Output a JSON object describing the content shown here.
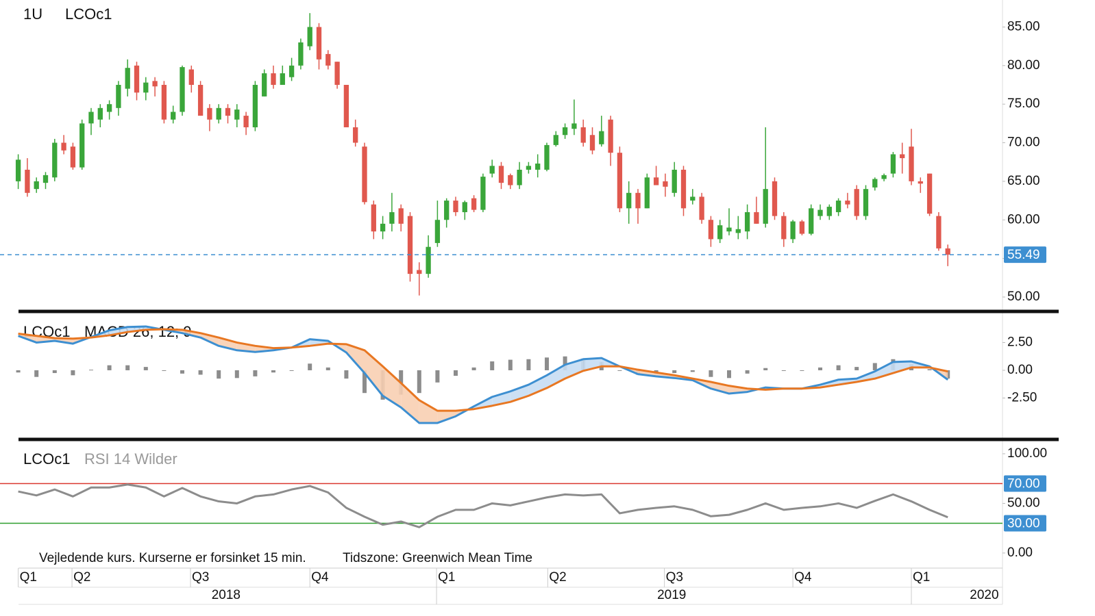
{
  "chart_data": [
    {
      "type": "candlestick",
      "title": [
        "1U",
        "LCOc1"
      ],
      "up_color": "#3aa63a",
      "down_color": "#e0584e",
      "xlim": [
        -2,
        108
      ],
      "ylim": [
        48.4,
        88.5
      ],
      "yticks": [
        {
          "value": 50,
          "label": "50.00"
        },
        {
          "value": 55,
          "label": "55.00"
        },
        {
          "value": 60,
          "label": "60.00"
        },
        {
          "value": 65,
          "label": "65.00"
        },
        {
          "value": 70,
          "label": "70.00"
        },
        {
          "value": 75,
          "label": "75.00"
        },
        {
          "value": 80,
          "label": "80.00"
        },
        {
          "value": 85,
          "label": "85.00"
        }
      ],
      "last": 55.49,
      "last_color": "#3d8fd1",
      "ohlc": [
        [
          65,
          68.5,
          64,
          67.8
        ],
        [
          66.5,
          68,
          63,
          63.5
        ],
        [
          64,
          65.5,
          63.5,
          65
        ],
        [
          64.8,
          66.2,
          64,
          65.8
        ],
        [
          65.5,
          70.5,
          65,
          70
        ],
        [
          70,
          71,
          68.5,
          69
        ],
        [
          69.5,
          70,
          66.5,
          66.8
        ],
        [
          66.8,
          73,
          66.5,
          72.5
        ],
        [
          72.5,
          74.5,
          71,
          74
        ],
        [
          73,
          75,
          72,
          74.5
        ],
        [
          74,
          75.5,
          73,
          75
        ],
        [
          74.5,
          78,
          73.5,
          77.5
        ],
        [
          77,
          80.8,
          76,
          79.7
        ],
        [
          80,
          80.5,
          75.5,
          76.5
        ],
        [
          76.5,
          78.5,
          75.5,
          77.8
        ],
        [
          78,
          78.5,
          76,
          77.3
        ],
        [
          77.5,
          78,
          72.5,
          73
        ],
        [
          73,
          74.8,
          72.5,
          74
        ],
        [
          74,
          80,
          73.5,
          79.8
        ],
        [
          79.5,
          80,
          76.5,
          77.5
        ],
        [
          77.5,
          78,
          73.5,
          73.5
        ],
        [
          74.5,
          75,
          71.5,
          73
        ],
        [
          73,
          75,
          72.5,
          74.5
        ],
        [
          74.5,
          75,
          72.5,
          73.5
        ],
        [
          73,
          75,
          72,
          74.3
        ],
        [
          73.5,
          74,
          71,
          72
        ],
        [
          72,
          78,
          71.5,
          77.5
        ],
        [
          76,
          79.5,
          76,
          79
        ],
        [
          79,
          80,
          77,
          77.5
        ],
        [
          77.5,
          80,
          77.5,
          79
        ],
        [
          78.5,
          81,
          78,
          80
        ],
        [
          80,
          83.5,
          79.5,
          83
        ],
        [
          82.5,
          86.8,
          82,
          85
        ],
        [
          85,
          85.5,
          79.5,
          80.8
        ],
        [
          81.5,
          82,
          79.5,
          80
        ],
        [
          80.5,
          80.5,
          77,
          77.5
        ],
        [
          77.5,
          77.5,
          72,
          72
        ],
        [
          72,
          73,
          69.5,
          70
        ],
        [
          69.5,
          70,
          62,
          62.3
        ],
        [
          62,
          62.5,
          57.5,
          58.5
        ],
        [
          58.5,
          60.5,
          57.5,
          59.5
        ],
        [
          59.5,
          63.5,
          58.5,
          61
        ],
        [
          61.5,
          62,
          58.5,
          59.5
        ],
        [
          60.5,
          61,
          52,
          53
        ],
        [
          53.5,
          54.5,
          50.2,
          53
        ],
        [
          53,
          58,
          52.5,
          56.5
        ],
        [
          57,
          62.5,
          56.5,
          60
        ],
        [
          60,
          62.8,
          59,
          62.5
        ],
        [
          62.5,
          63,
          60.5,
          61
        ],
        [
          61,
          62.5,
          60,
          62.3
        ],
        [
          62.8,
          63.2,
          61,
          61.3
        ],
        [
          61.3,
          66,
          61,
          65.6
        ],
        [
          66,
          67.8,
          65.5,
          67
        ],
        [
          67,
          67.5,
          64,
          64.8
        ],
        [
          65.8,
          66,
          64,
          64.5
        ],
        [
          64.5,
          67.5,
          64,
          66.5
        ],
        [
          66.5,
          67.5,
          66,
          67
        ],
        [
          66.5,
          68.5,
          65.5,
          67.3
        ],
        [
          66.5,
          70,
          66.3,
          69.7
        ],
        [
          69.7,
          71.5,
          69.5,
          71
        ],
        [
          71,
          72.5,
          70.5,
          72
        ],
        [
          71.8,
          75.6,
          71,
          72.5
        ],
        [
          72,
          73,
          69.5,
          70
        ],
        [
          71,
          72,
          68.5,
          69
        ],
        [
          69.8,
          73.5,
          69.5,
          71.5
        ],
        [
          73,
          73.5,
          67,
          68.7
        ],
        [
          68.7,
          69.5,
          61,
          61.5
        ],
        [
          61.5,
          65,
          59.5,
          63.5
        ],
        [
          63.5,
          64,
          59.5,
          61.5
        ],
        [
          61.5,
          66,
          61.5,
          65.5
        ],
        [
          65.5,
          67,
          64.5,
          64.5
        ],
        [
          65,
          66,
          63,
          64.3
        ],
        [
          63.5,
          67.5,
          63,
          66.5
        ],
        [
          66.5,
          67,
          60.5,
          61.5
        ],
        [
          62.5,
          64,
          62,
          63
        ],
        [
          63,
          63.5,
          59.5,
          60
        ],
        [
          60,
          60.5,
          56.5,
          57.5
        ],
        [
          57.5,
          60,
          57,
          59.3
        ],
        [
          58.5,
          61.5,
          58,
          59
        ],
        [
          58.3,
          60.5,
          57.5,
          58.8
        ],
        [
          58.5,
          62,
          57.5,
          61
        ],
        [
          61,
          63,
          59.5,
          59.5
        ],
        [
          59.5,
          72,
          59,
          64
        ],
        [
          65,
          65.5,
          60,
          60.5
        ],
        [
          60.5,
          61,
          56.5,
          57.5
        ],
        [
          57.5,
          60,
          57,
          59.8
        ],
        [
          59.8,
          60,
          58,
          58.2
        ],
        [
          58.2,
          62,
          58,
          61.5
        ],
        [
          60.5,
          62,
          60,
          61.3
        ],
        [
          60.5,
          62,
          60,
          61.7
        ],
        [
          61,
          62.8,
          60.5,
          62.5
        ],
        [
          62.5,
          63.5,
          61.5,
          62
        ],
        [
          64,
          64.5,
          60,
          60.5
        ],
        [
          60.5,
          64.5,
          60,
          64
        ],
        [
          64.2,
          65.5,
          63.8,
          65.3
        ],
        [
          65.3,
          66,
          65,
          65.8
        ],
        [
          66,
          68.8,
          65.5,
          68.5
        ],
        [
          68.5,
          70,
          66,
          68
        ],
        [
          69.5,
          71.8,
          64.5,
          65
        ],
        [
          65,
          65.5,
          63.5,
          64.7
        ],
        [
          66,
          66,
          60.5,
          60.8
        ],
        [
          60.5,
          61,
          56,
          56.3
        ],
        [
          56.3,
          56.8,
          54,
          55.49
        ]
      ]
    },
    {
      "type": "macd",
      "title": [
        "LCOc1",
        "MACD 26; 12; 9"
      ],
      "xlim": [
        -2,
        108
      ],
      "ylim": [
        -6.11,
        5.12
      ],
      "yticks": [
        {
          "value": 2.5,
          "label": "2.50"
        },
        {
          "value": 0,
          "label": "0.00"
        },
        {
          "value": -2.5,
          "label": "-2.50"
        }
      ],
      "x": [
        0,
        2,
        4,
        6,
        8,
        10,
        12,
        14,
        16,
        18,
        20,
        22,
        24,
        26,
        28,
        30,
        32,
        34,
        36,
        38,
        40,
        42,
        44,
        46,
        48,
        50,
        52,
        54,
        56,
        58,
        60,
        62,
        64,
        66,
        68,
        70,
        72,
        74,
        76,
        78,
        80,
        82,
        84,
        86,
        88,
        90,
        92,
        94,
        96,
        98,
        100,
        102
      ],
      "series": [
        {
          "color": "#3d8fd1",
          "fill": "#c6ddf3",
          "values": [
            3.1,
            2.5,
            2.65,
            2.4,
            3.0,
            3.6,
            3.9,
            3.95,
            3.65,
            3.35,
            2.95,
            2.2,
            1.8,
            1.65,
            1.8,
            2.05,
            2.8,
            2.65,
            1.6,
            -0.25,
            -2.3,
            -3.35,
            -4.75,
            -4.75,
            -4.15,
            -3.25,
            -2.4,
            -1.9,
            -1.3,
            -0.45,
            0.5,
            1.0,
            1.1,
            0.35,
            -0.35,
            -0.55,
            -0.7,
            -0.9,
            -1.65,
            -2.1,
            -1.95,
            -1.55,
            -1.65,
            -1.65,
            -1.3,
            -0.85,
            -0.75,
            -0.1,
            0.75,
            0.8,
            0.35,
            -0.85
          ]
        },
        {
          "color": "#e87722",
          "fill": "#f8cfb3",
          "values": [
            3.3,
            3.1,
            2.9,
            2.85,
            2.95,
            3.15,
            3.45,
            3.65,
            3.7,
            3.65,
            3.35,
            2.95,
            2.5,
            2.2,
            2.0,
            2.05,
            2.2,
            2.4,
            2.35,
            1.8,
            0.35,
            -1.15,
            -2.7,
            -3.65,
            -3.65,
            -3.5,
            -3.2,
            -2.85,
            -2.3,
            -1.6,
            -0.75,
            -0.05,
            0.35,
            0.35,
            0.05,
            -0.2,
            -0.45,
            -0.75,
            -1.05,
            -1.4,
            -1.65,
            -1.75,
            -1.65,
            -1.65,
            -1.55,
            -1.3,
            -1.05,
            -0.75,
            -0.25,
            0.25,
            0.25,
            -0.1
          ]
        }
      ],
      "histogram": {
        "color": "#8c8c8c",
        "values": [
          -0.2,
          -0.6,
          -0.25,
          -0.45,
          0.05,
          0.45,
          0.45,
          0.3,
          -0.05,
          -0.3,
          -0.4,
          -0.75,
          -0.7,
          -0.55,
          -0.2,
          0,
          0.6,
          0.25,
          -0.75,
          -2.05,
          -2.65,
          -2.2,
          -2.05,
          -1.1,
          -0.5,
          0.25,
          0.8,
          0.95,
          1.0,
          1.15,
          1.25,
          1.05,
          0.75,
          0,
          -0.4,
          -0.35,
          -0.25,
          -0.15,
          -0.6,
          -0.7,
          -0.3,
          0.2,
          0,
          0,
          0.25,
          0.45,
          0.3,
          0.65,
          1.0,
          0.55,
          0.1,
          -0.75
        ]
      }
    },
    {
      "type": "line",
      "title": [
        "LCOc1",
        "RSI 14 Wilder"
      ],
      "xlim": [
        -2,
        108
      ],
      "ylim": [
        -15.2,
        110.3
      ],
      "yticks": [
        {
          "value": 100,
          "label": "100.00"
        },
        {
          "value": 50,
          "label": "50.00"
        },
        {
          "value": 0,
          "label": "0.00"
        }
      ],
      "levels": [
        {
          "value": 70,
          "label": "70.00",
          "color": "#d9372e"
        },
        {
          "value": 30,
          "label": "30.00",
          "color": "#2e9e2e"
        }
      ],
      "label_color": "#3d8fd1",
      "x": [
        0,
        2,
        4,
        6,
        8,
        10,
        12,
        14,
        16,
        18,
        20,
        22,
        24,
        26,
        28,
        30,
        32,
        34,
        36,
        38,
        40,
        42,
        44,
        46,
        48,
        50,
        52,
        54,
        56,
        58,
        60,
        62,
        64,
        66,
        68,
        70,
        72,
        74,
        76,
        78,
        80,
        82,
        84,
        86,
        88,
        90,
        92,
        94,
        96,
        98,
        100,
        102
      ],
      "series": [
        {
          "color": "#8c8c8c",
          "values": [
            62,
            58,
            64,
            57,
            66,
            66,
            69,
            66,
            57,
            65.5,
            57,
            52,
            50,
            57,
            59,
            64,
            67.5,
            61,
            45.5,
            36.5,
            28.5,
            31.7,
            26,
            36.5,
            43.5,
            43.5,
            50,
            48,
            52,
            56,
            59,
            58,
            59,
            40,
            43.5,
            45.5,
            47,
            43.5,
            37,
            38.5,
            43.5,
            50,
            43.5,
            45.5,
            47,
            50,
            45.5,
            52.5,
            59,
            52,
            43.5,
            36
          ]
        }
      ],
      "xticks": [
        {
          "value": 0,
          "label": "Q1"
        },
        {
          "value": 5.9,
          "label": "Q2"
        },
        {
          "value": 18.9,
          "label": "Q3"
        },
        {
          "value": 32,
          "label": "Q4"
        },
        {
          "value": 45.9,
          "label": "Q1"
        },
        {
          "value": 58.1,
          "label": "Q2"
        },
        {
          "value": 70.9,
          "label": "Q3"
        },
        {
          "value": 85,
          "label": "Q4"
        },
        {
          "value": 98,
          "label": "Q1"
        }
      ],
      "years": [
        {
          "value": 22.8,
          "label": "2018"
        },
        {
          "value": 71.7,
          "label": "2019"
        },
        {
          "value": 106,
          "label": "2020"
        }
      ]
    }
  ],
  "footer": [
    "Vejledende kurs. Kurserne er forsinket 15 min.",
    "Tidszone: Greenwich Mean Time"
  ]
}
